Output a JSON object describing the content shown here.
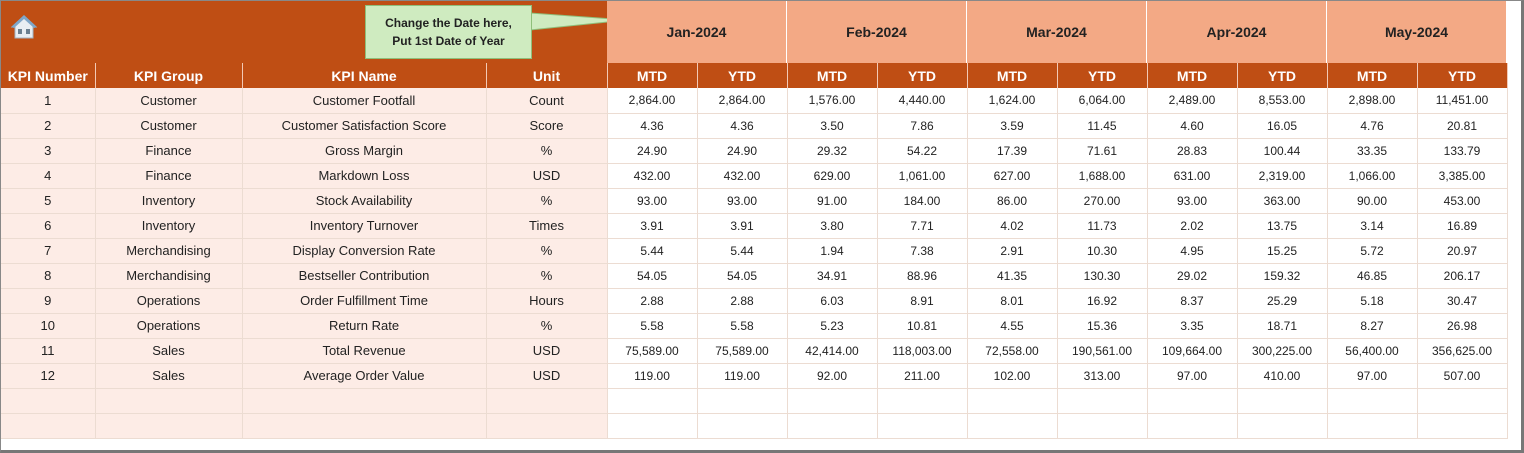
{
  "callout": {
    "line1": "Change the Date here,",
    "line2": "Put 1st Date of Year"
  },
  "icons": {
    "home": "home-icon"
  },
  "colors": {
    "header": "#BF4E14",
    "month_header": "#F3A985",
    "left_cells": "#FDECE6",
    "callout": "#CFEBC0"
  },
  "months": [
    "Jan-2024",
    "Feb-2024",
    "Mar-2024",
    "Apr-2024",
    "May-2024"
  ],
  "columns": [
    "KPI Number",
    "KPI Group",
    "KPI Name",
    "Unit"
  ],
  "sub_columns": [
    "MTD",
    "YTD"
  ],
  "rows": [
    {
      "num": "1",
      "group": "Customer",
      "name": "Customer Footfall",
      "unit": "Count",
      "values": [
        "2,864.00",
        "2,864.00",
        "1,576.00",
        "4,440.00",
        "1,624.00",
        "6,064.00",
        "2,489.00",
        "8,553.00",
        "2,898.00",
        "11,451.00"
      ]
    },
    {
      "num": "2",
      "group": "Customer",
      "name": "Customer Satisfaction Score",
      "unit": "Score",
      "values": [
        "4.36",
        "4.36",
        "3.50",
        "7.86",
        "3.59",
        "11.45",
        "4.60",
        "16.05",
        "4.76",
        "20.81"
      ]
    },
    {
      "num": "3",
      "group": "Finance",
      "name": "Gross Margin",
      "unit": "%",
      "values": [
        "24.90",
        "24.90",
        "29.32",
        "54.22",
        "17.39",
        "71.61",
        "28.83",
        "100.44",
        "33.35",
        "133.79"
      ]
    },
    {
      "num": "4",
      "group": "Finance",
      "name": "Markdown Loss",
      "unit": "USD",
      "values": [
        "432.00",
        "432.00",
        "629.00",
        "1,061.00",
        "627.00",
        "1,688.00",
        "631.00",
        "2,319.00",
        "1,066.00",
        "3,385.00"
      ]
    },
    {
      "num": "5",
      "group": "Inventory",
      "name": "Stock Availability",
      "unit": "%",
      "values": [
        "93.00",
        "93.00",
        "91.00",
        "184.00",
        "86.00",
        "270.00",
        "93.00",
        "363.00",
        "90.00",
        "453.00"
      ]
    },
    {
      "num": "6",
      "group": "Inventory",
      "name": "Inventory Turnover",
      "unit": "Times",
      "values": [
        "3.91",
        "3.91",
        "3.80",
        "7.71",
        "4.02",
        "11.73",
        "2.02",
        "13.75",
        "3.14",
        "16.89"
      ]
    },
    {
      "num": "7",
      "group": "Merchandising",
      "name": "Display Conversion Rate",
      "unit": "%",
      "values": [
        "5.44",
        "5.44",
        "1.94",
        "7.38",
        "2.91",
        "10.30",
        "4.95",
        "15.25",
        "5.72",
        "20.97"
      ]
    },
    {
      "num": "8",
      "group": "Merchandising",
      "name": "Bestseller Contribution",
      "unit": "%",
      "values": [
        "54.05",
        "54.05",
        "34.91",
        "88.96",
        "41.35",
        "130.30",
        "29.02",
        "159.32",
        "46.85",
        "206.17"
      ]
    },
    {
      "num": "9",
      "group": "Operations",
      "name": "Order Fulfillment Time",
      "unit": "Hours",
      "values": [
        "2.88",
        "2.88",
        "6.03",
        "8.91",
        "8.01",
        "16.92",
        "8.37",
        "25.29",
        "5.18",
        "30.47"
      ]
    },
    {
      "num": "10",
      "group": "Operations",
      "name": "Return Rate",
      "unit": "%",
      "values": [
        "5.58",
        "5.58",
        "5.23",
        "10.81",
        "4.55",
        "15.36",
        "3.35",
        "18.71",
        "8.27",
        "26.98"
      ]
    },
    {
      "num": "11",
      "group": "Sales",
      "name": "Total Revenue",
      "unit": "USD",
      "values": [
        "75,589.00",
        "75,589.00",
        "42,414.00",
        "118,003.00",
        "72,558.00",
        "190,561.00",
        "109,664.00",
        "300,225.00",
        "56,400.00",
        "356,625.00"
      ]
    },
    {
      "num": "12",
      "group": "Sales",
      "name": "Average Order Value",
      "unit": "USD",
      "values": [
        "119.00",
        "119.00",
        "92.00",
        "211.00",
        "102.00",
        "313.00",
        "97.00",
        "410.00",
        "97.00",
        "507.00"
      ]
    }
  ]
}
